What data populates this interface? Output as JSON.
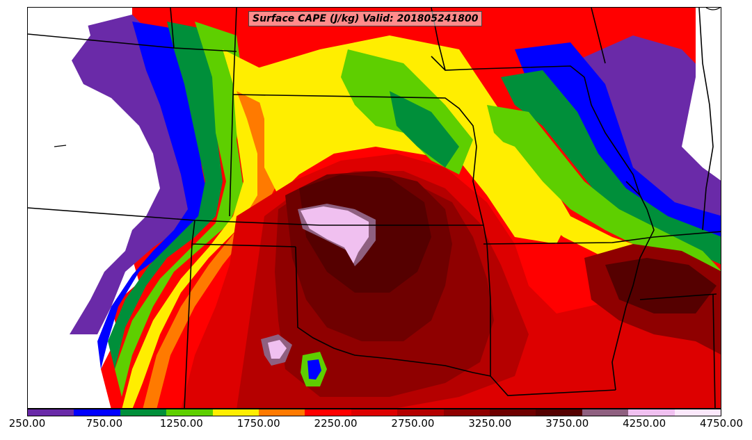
{
  "map": {
    "title": "Surface CAPE (J/kg) Valid: 201805241800",
    "variable": "Surface CAPE",
    "units": "J/kg",
    "valid_time": "201805241800",
    "background_color": "#ffffff"
  },
  "colorbar": {
    "min": 250,
    "max": 4750,
    "interval": 250,
    "colors": [
      "#6a2aa8",
      "#0000ff",
      "#008f3a",
      "#5ecf00",
      "#ffee00",
      "#ff7a00",
      "#ff0000",
      "#dd0000",
      "#b50000",
      "#8f0000",
      "#6f0000",
      "#550000",
      "#8f6080",
      "#f0c0f0",
      "#fbe8fb"
    ],
    "tick_labels": [
      "250.00",
      "750.00",
      "1250.00",
      "1750.00",
      "2250.00",
      "2750.00",
      "3250.00",
      "3750.00",
      "4250.00",
      "4750.00"
    ]
  }
}
